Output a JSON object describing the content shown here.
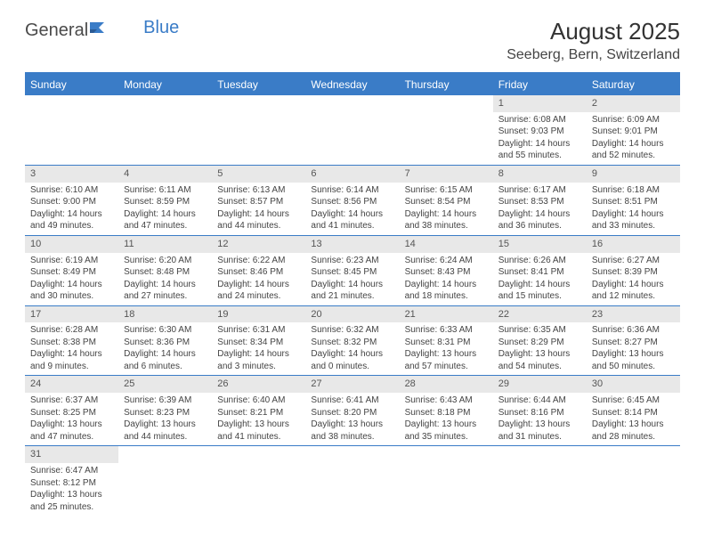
{
  "logo": {
    "text1": "General",
    "text2": "Blue"
  },
  "title": "August 2025",
  "location": "Seeberg, Bern, Switzerland",
  "colors": {
    "header_bg": "#3a7cc7",
    "header_text": "#ffffff",
    "daynum_bg": "#e8e8e8",
    "border": "#3a7cc7",
    "page_bg": "#ffffff",
    "body_text": "#444444"
  },
  "day_labels": [
    "Sunday",
    "Monday",
    "Tuesday",
    "Wednesday",
    "Thursday",
    "Friday",
    "Saturday"
  ],
  "weeks": [
    [
      {
        "empty": true
      },
      {
        "empty": true
      },
      {
        "empty": true
      },
      {
        "empty": true
      },
      {
        "empty": true
      },
      {
        "n": "1",
        "sr": "Sunrise: 6:08 AM",
        "ss": "Sunset: 9:03 PM",
        "d1": "Daylight: 14 hours",
        "d2": "and 55 minutes."
      },
      {
        "n": "2",
        "sr": "Sunrise: 6:09 AM",
        "ss": "Sunset: 9:01 PM",
        "d1": "Daylight: 14 hours",
        "d2": "and 52 minutes."
      }
    ],
    [
      {
        "n": "3",
        "sr": "Sunrise: 6:10 AM",
        "ss": "Sunset: 9:00 PM",
        "d1": "Daylight: 14 hours",
        "d2": "and 49 minutes."
      },
      {
        "n": "4",
        "sr": "Sunrise: 6:11 AM",
        "ss": "Sunset: 8:59 PM",
        "d1": "Daylight: 14 hours",
        "d2": "and 47 minutes."
      },
      {
        "n": "5",
        "sr": "Sunrise: 6:13 AM",
        "ss": "Sunset: 8:57 PM",
        "d1": "Daylight: 14 hours",
        "d2": "and 44 minutes."
      },
      {
        "n": "6",
        "sr": "Sunrise: 6:14 AM",
        "ss": "Sunset: 8:56 PM",
        "d1": "Daylight: 14 hours",
        "d2": "and 41 minutes."
      },
      {
        "n": "7",
        "sr": "Sunrise: 6:15 AM",
        "ss": "Sunset: 8:54 PM",
        "d1": "Daylight: 14 hours",
        "d2": "and 38 minutes."
      },
      {
        "n": "8",
        "sr": "Sunrise: 6:17 AM",
        "ss": "Sunset: 8:53 PM",
        "d1": "Daylight: 14 hours",
        "d2": "and 36 minutes."
      },
      {
        "n": "9",
        "sr": "Sunrise: 6:18 AM",
        "ss": "Sunset: 8:51 PM",
        "d1": "Daylight: 14 hours",
        "d2": "and 33 minutes."
      }
    ],
    [
      {
        "n": "10",
        "sr": "Sunrise: 6:19 AM",
        "ss": "Sunset: 8:49 PM",
        "d1": "Daylight: 14 hours",
        "d2": "and 30 minutes."
      },
      {
        "n": "11",
        "sr": "Sunrise: 6:20 AM",
        "ss": "Sunset: 8:48 PM",
        "d1": "Daylight: 14 hours",
        "d2": "and 27 minutes."
      },
      {
        "n": "12",
        "sr": "Sunrise: 6:22 AM",
        "ss": "Sunset: 8:46 PM",
        "d1": "Daylight: 14 hours",
        "d2": "and 24 minutes."
      },
      {
        "n": "13",
        "sr": "Sunrise: 6:23 AM",
        "ss": "Sunset: 8:45 PM",
        "d1": "Daylight: 14 hours",
        "d2": "and 21 minutes."
      },
      {
        "n": "14",
        "sr": "Sunrise: 6:24 AM",
        "ss": "Sunset: 8:43 PM",
        "d1": "Daylight: 14 hours",
        "d2": "and 18 minutes."
      },
      {
        "n": "15",
        "sr": "Sunrise: 6:26 AM",
        "ss": "Sunset: 8:41 PM",
        "d1": "Daylight: 14 hours",
        "d2": "and 15 minutes."
      },
      {
        "n": "16",
        "sr": "Sunrise: 6:27 AM",
        "ss": "Sunset: 8:39 PM",
        "d1": "Daylight: 14 hours",
        "d2": "and 12 minutes."
      }
    ],
    [
      {
        "n": "17",
        "sr": "Sunrise: 6:28 AM",
        "ss": "Sunset: 8:38 PM",
        "d1": "Daylight: 14 hours",
        "d2": "and 9 minutes."
      },
      {
        "n": "18",
        "sr": "Sunrise: 6:30 AM",
        "ss": "Sunset: 8:36 PM",
        "d1": "Daylight: 14 hours",
        "d2": "and 6 minutes."
      },
      {
        "n": "19",
        "sr": "Sunrise: 6:31 AM",
        "ss": "Sunset: 8:34 PM",
        "d1": "Daylight: 14 hours",
        "d2": "and 3 minutes."
      },
      {
        "n": "20",
        "sr": "Sunrise: 6:32 AM",
        "ss": "Sunset: 8:32 PM",
        "d1": "Daylight: 14 hours",
        "d2": "and 0 minutes."
      },
      {
        "n": "21",
        "sr": "Sunrise: 6:33 AM",
        "ss": "Sunset: 8:31 PM",
        "d1": "Daylight: 13 hours",
        "d2": "and 57 minutes."
      },
      {
        "n": "22",
        "sr": "Sunrise: 6:35 AM",
        "ss": "Sunset: 8:29 PM",
        "d1": "Daylight: 13 hours",
        "d2": "and 54 minutes."
      },
      {
        "n": "23",
        "sr": "Sunrise: 6:36 AM",
        "ss": "Sunset: 8:27 PM",
        "d1": "Daylight: 13 hours",
        "d2": "and 50 minutes."
      }
    ],
    [
      {
        "n": "24",
        "sr": "Sunrise: 6:37 AM",
        "ss": "Sunset: 8:25 PM",
        "d1": "Daylight: 13 hours",
        "d2": "and 47 minutes."
      },
      {
        "n": "25",
        "sr": "Sunrise: 6:39 AM",
        "ss": "Sunset: 8:23 PM",
        "d1": "Daylight: 13 hours",
        "d2": "and 44 minutes."
      },
      {
        "n": "26",
        "sr": "Sunrise: 6:40 AM",
        "ss": "Sunset: 8:21 PM",
        "d1": "Daylight: 13 hours",
        "d2": "and 41 minutes."
      },
      {
        "n": "27",
        "sr": "Sunrise: 6:41 AM",
        "ss": "Sunset: 8:20 PM",
        "d1": "Daylight: 13 hours",
        "d2": "and 38 minutes."
      },
      {
        "n": "28",
        "sr": "Sunrise: 6:43 AM",
        "ss": "Sunset: 8:18 PM",
        "d1": "Daylight: 13 hours",
        "d2": "and 35 minutes."
      },
      {
        "n": "29",
        "sr": "Sunrise: 6:44 AM",
        "ss": "Sunset: 8:16 PM",
        "d1": "Daylight: 13 hours",
        "d2": "and 31 minutes."
      },
      {
        "n": "30",
        "sr": "Sunrise: 6:45 AM",
        "ss": "Sunset: 8:14 PM",
        "d1": "Daylight: 13 hours",
        "d2": "and 28 minutes."
      }
    ],
    [
      {
        "n": "31",
        "sr": "Sunrise: 6:47 AM",
        "ss": "Sunset: 8:12 PM",
        "d1": "Daylight: 13 hours",
        "d2": "and 25 minutes."
      },
      {
        "empty": true
      },
      {
        "empty": true
      },
      {
        "empty": true
      },
      {
        "empty": true
      },
      {
        "empty": true
      },
      {
        "empty": true
      }
    ]
  ]
}
